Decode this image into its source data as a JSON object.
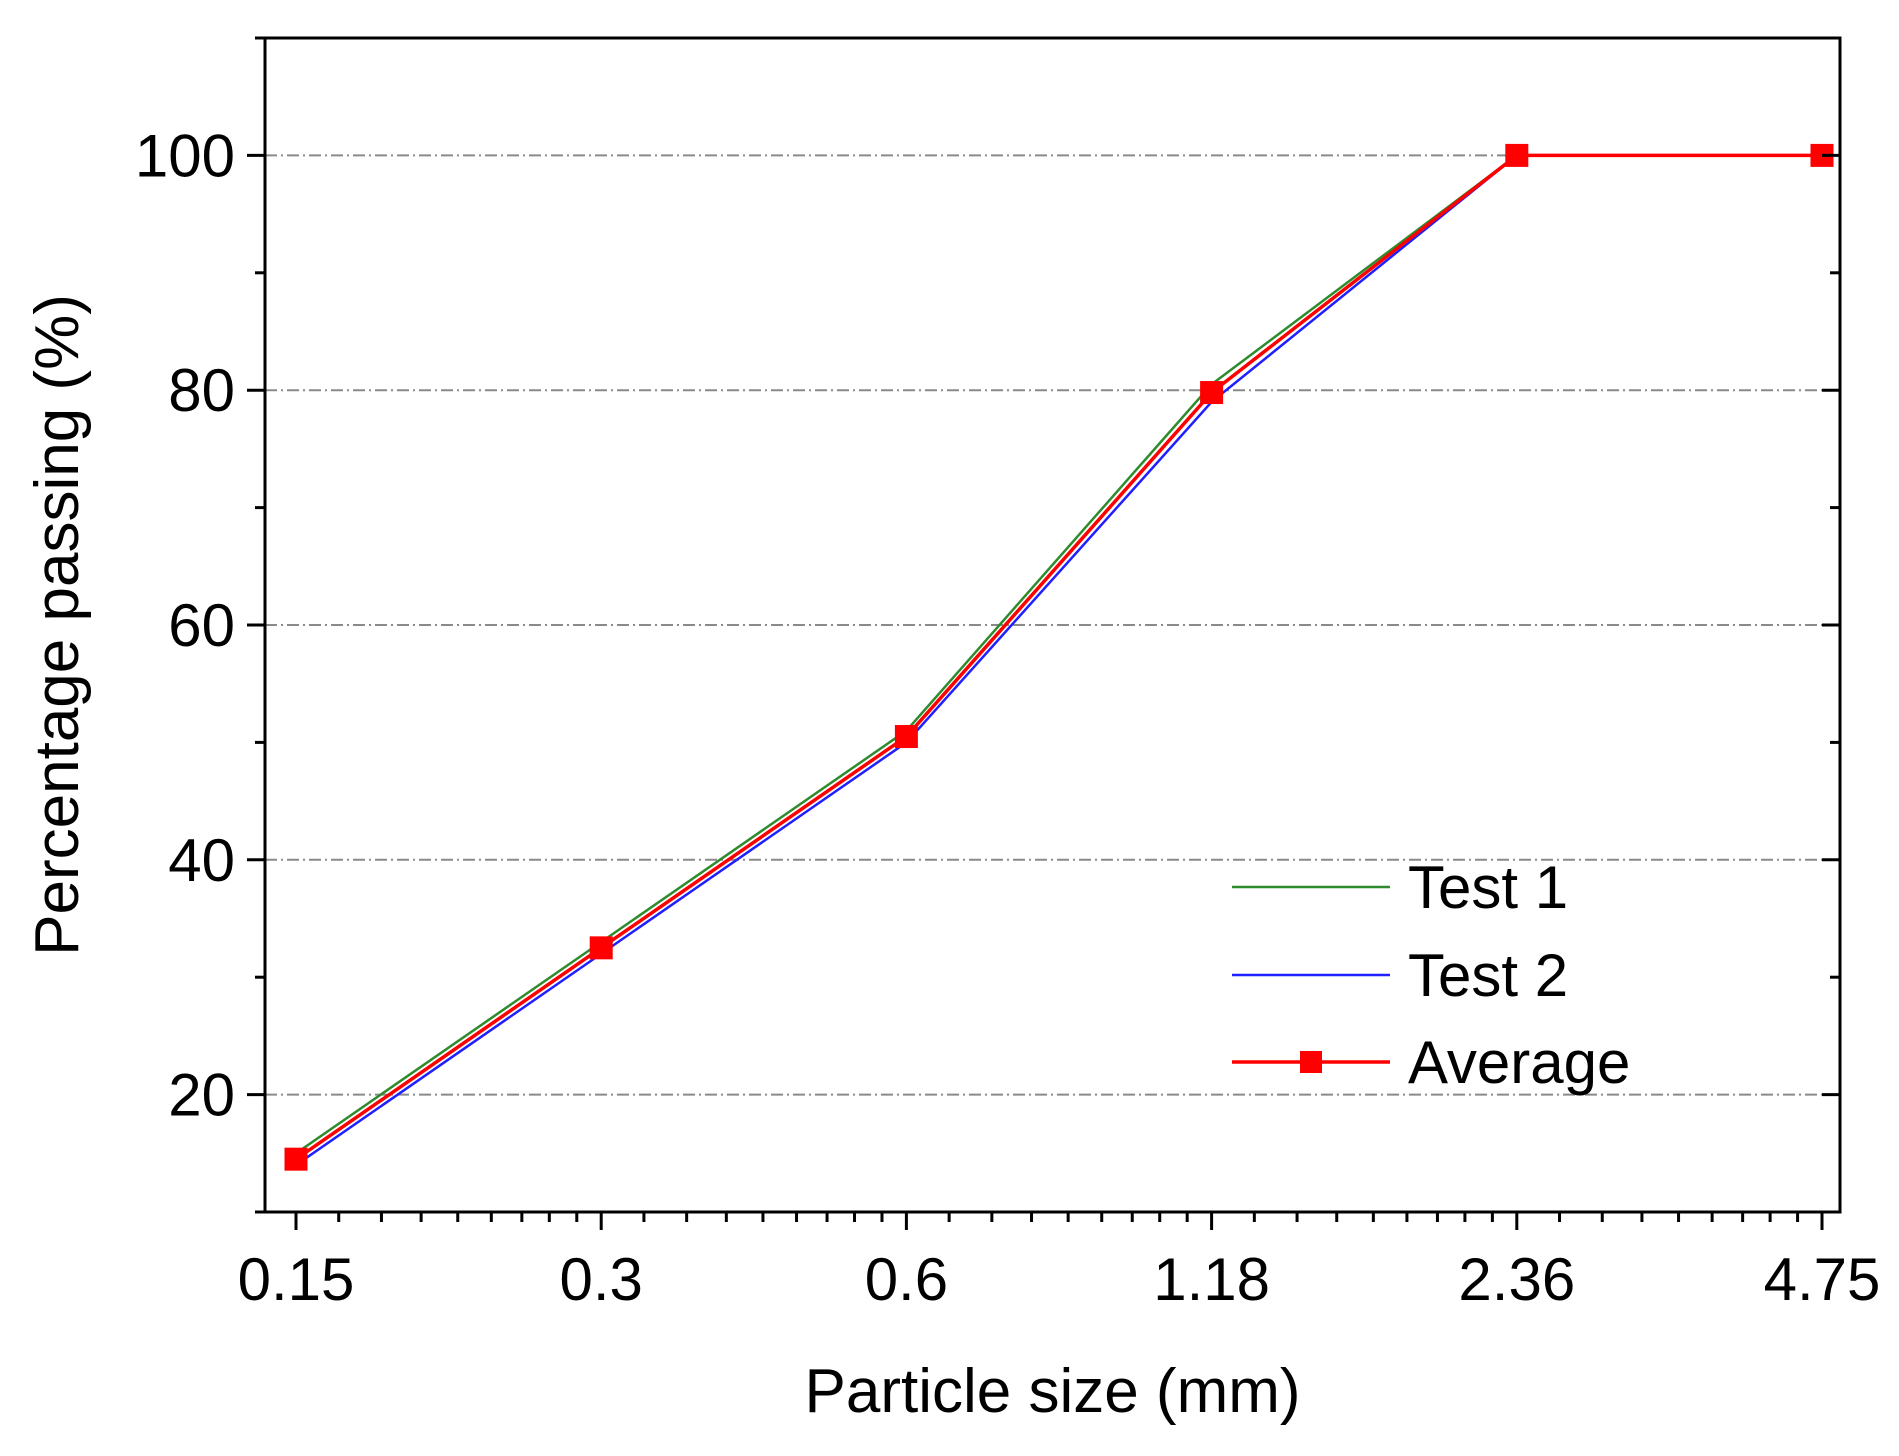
{
  "chart_data": {
    "type": "line",
    "title": "",
    "xlabel": "Particle size (mm)",
    "ylabel": "Percentage passing (%)",
    "x_scale": "categorical",
    "categories": [
      "0.15",
      "0.3",
      "0.6",
      "1.18",
      "2.36",
      "4.75"
    ],
    "ylim": [
      10,
      110
    ],
    "yticks": [
      20,
      40,
      60,
      80,
      100
    ],
    "grid": "horizontal dashed at major y ticks",
    "legend_position": "bottom-right",
    "series": [
      {
        "name": "Test 1",
        "color": "#2e8b2e",
        "marker": "none",
        "values": [
          15,
          33,
          51,
          80.5,
          100,
          100
        ]
      },
      {
        "name": "Test 2",
        "color": "#1f1fff",
        "marker": "none",
        "values": [
          14,
          32,
          50,
          79,
          100,
          100
        ]
      },
      {
        "name": "Average",
        "color": "#ff0000",
        "marker": "square",
        "values": [
          14.5,
          32.5,
          50.5,
          79.8,
          100,
          100
        ]
      }
    ]
  }
}
